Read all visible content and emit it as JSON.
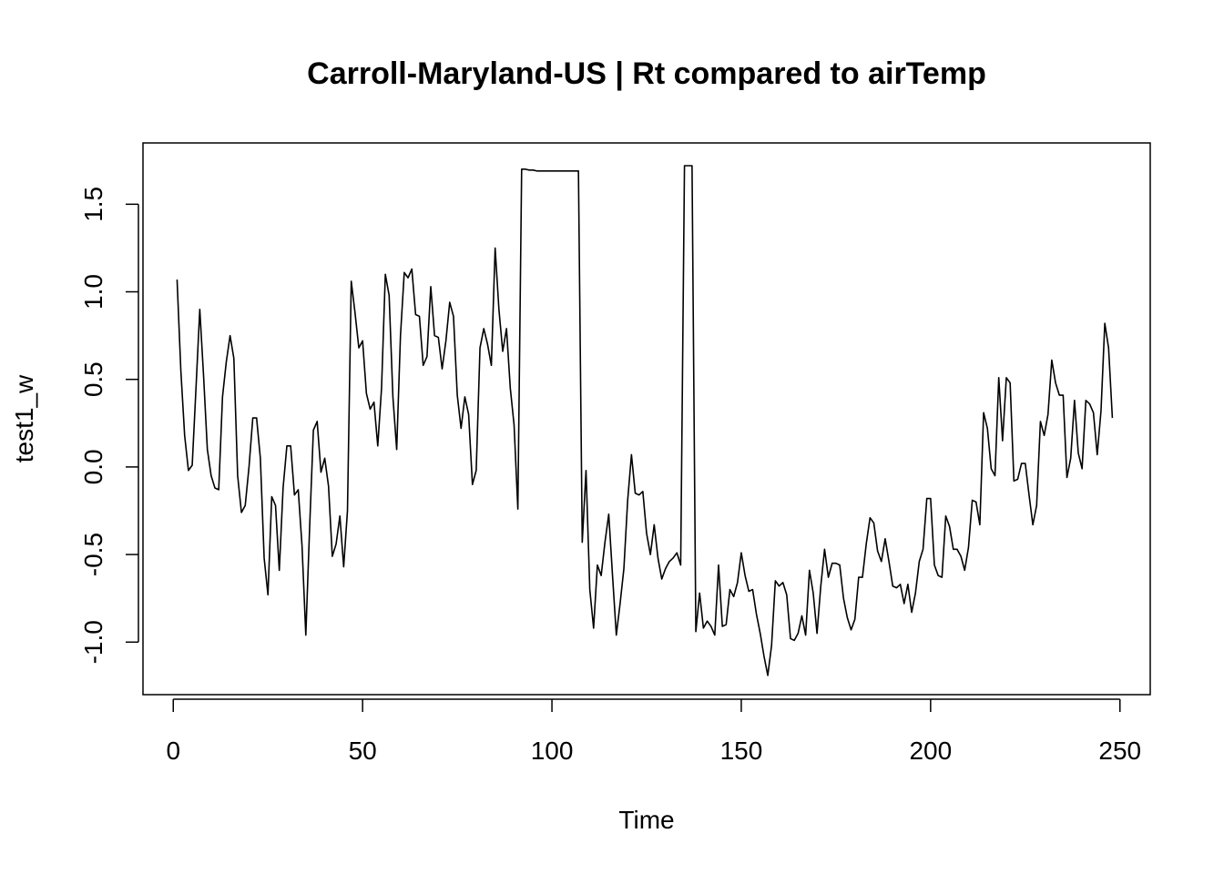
{
  "chart_data": {
    "type": "line",
    "title": "Carroll-Maryland-US | Rt compared to airTemp",
    "xlabel": "Time",
    "ylabel": "test1_w",
    "xlim": [
      -8,
      258
    ],
    "ylim": [
      -1.3,
      1.85
    ],
    "xticks": [
      0,
      50,
      100,
      150,
      200,
      250
    ],
    "xtick_labels": [
      "0",
      "50",
      "100",
      "150",
      "200",
      "250"
    ],
    "yticks": [
      -1.0,
      -0.5,
      0.0,
      0.5,
      1.0,
      1.5
    ],
    "ytick_labels": [
      "-1.0",
      "-0.5",
      "0.0",
      "0.5",
      "1.0",
      "1.5"
    ],
    "grid": false,
    "legend": "none",
    "color": "#000000",
    "x_start": 1,
    "values": [
      1.07,
      0.55,
      0.18,
      -0.02,
      0.01,
      0.45,
      0.9,
      0.52,
      0.1,
      -0.05,
      -0.12,
      -0.13,
      0.4,
      0.6,
      0.75,
      0.62,
      -0.05,
      -0.26,
      -0.22,
      0.0,
      0.28,
      0.28,
      0.05,
      -0.52,
      -0.73,
      -0.17,
      -0.22,
      -0.59,
      -0.12,
      0.12,
      0.12,
      -0.16,
      -0.13,
      -0.45,
      -0.96,
      -0.35,
      0.21,
      0.26,
      -0.03,
      0.05,
      -0.11,
      -0.51,
      -0.44,
      -0.28,
      -0.57,
      -0.25,
      1.06,
      0.88,
      0.68,
      0.72,
      0.42,
      0.33,
      0.37,
      0.12,
      0.45,
      1.1,
      0.98,
      0.4,
      0.1,
      0.75,
      1.11,
      1.08,
      1.13,
      0.87,
      0.86,
      0.58,
      0.63,
      1.03,
      0.75,
      0.74,
      0.56,
      0.72,
      0.94,
      0.86,
      0.41,
      0.22,
      0.4,
      0.3,
      -0.1,
      -0.02,
      0.68,
      0.79,
      0.7,
      0.58,
      1.25,
      0.9,
      0.66,
      0.79,
      0.45,
      0.24,
      -0.24,
      1.7,
      1.7,
      1.695,
      1.695,
      1.69,
      1.69,
      1.69,
      1.69,
      1.69,
      1.69,
      1.69,
      1.69,
      1.69,
      1.69,
      1.69,
      1.69,
      -0.43,
      -0.02,
      -0.7,
      -0.92,
      -0.56,
      -0.62,
      -0.43,
      -0.27,
      -0.62,
      -0.96,
      -0.78,
      -0.58,
      -0.19,
      0.07,
      -0.15,
      -0.16,
      -0.14,
      -0.38,
      -0.5,
      -0.33,
      -0.52,
      -0.64,
      -0.58,
      -0.54,
      -0.52,
      -0.49,
      -0.56,
      1.72,
      1.72,
      1.72,
      -0.94,
      -0.72,
      -0.92,
      -0.88,
      -0.91,
      -0.96,
      -0.56,
      -0.91,
      -0.9,
      -0.7,
      -0.74,
      -0.66,
      -0.49,
      -0.62,
      -0.71,
      -0.7,
      -0.84,
      -0.95,
      -1.08,
      -1.19,
      -1.02,
      -0.65,
      -0.68,
      -0.66,
      -0.73,
      -0.98,
      -0.99,
      -0.95,
      -0.85,
      -0.96,
      -0.59,
      -0.72,
      -0.95,
      -0.68,
      -0.47,
      -0.63,
      -0.55,
      -0.55,
      -0.56,
      -0.75,
      -0.86,
      -0.93,
      -0.87,
      -0.63,
      -0.63,
      -0.44,
      -0.29,
      -0.32,
      -0.48,
      -0.54,
      -0.41,
      -0.54,
      -0.68,
      -0.69,
      -0.67,
      -0.78,
      -0.67,
      -0.83,
      -0.72,
      -0.54,
      -0.47,
      -0.18,
      -0.18,
      -0.56,
      -0.62,
      -0.63,
      -0.28,
      -0.34,
      -0.47,
      -0.47,
      -0.51,
      -0.59,
      -0.46,
      -0.19,
      -0.2,
      -0.33,
      0.31,
      0.22,
      -0.01,
      -0.05,
      0.51,
      0.15,
      0.51,
      0.48,
      -0.08,
      -0.07,
      0.02,
      0.02,
      -0.16,
      -0.33,
      -0.22,
      0.26,
      0.18,
      0.3,
      0.61,
      0.48,
      0.41,
      0.41,
      -0.06,
      0.05,
      0.38,
      0.08,
      -0.01,
      0.38,
      0.36,
      0.31,
      0.07,
      0.32,
      0.82,
      0.68,
      0.28
    ]
  }
}
